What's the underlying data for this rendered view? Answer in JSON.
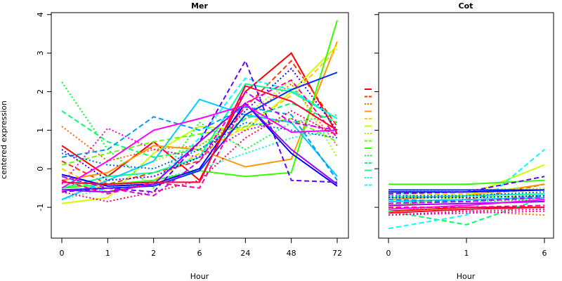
{
  "ylabel": "centered expression",
  "chart_data": [
    {
      "type": "line",
      "title": "Mer",
      "xlabel": "Hour",
      "ylabel": "centered expression",
      "categories": [
        "0",
        "1",
        "2",
        "6",
        "24",
        "48",
        "72"
      ],
      "ylim": [
        -1.8,
        4.05
      ],
      "yticks": [
        -1,
        0,
        1,
        2,
        3,
        4
      ],
      "series": [
        {
          "color": "#ff0000",
          "dash": "solid",
          "values": [
            0.6,
            -0.2,
            0.7,
            -0.3,
            2.0,
            3.0,
            0.9
          ]
        },
        {
          "color": "#ff3300",
          "dash": "dashed",
          "values": [
            0.2,
            -0.4,
            -0.1,
            0.2,
            1.6,
            2.8,
            1.1
          ]
        },
        {
          "color": "#ff6600",
          "dash": "dotted",
          "values": [
            1.1,
            0.2,
            0.5,
            0.6,
            1.3,
            2.2,
            0.6
          ]
        },
        {
          "color": "#ff9900",
          "dash": "solid",
          "values": [
            -0.3,
            -0.1,
            0.6,
            0.5,
            0.05,
            0.25,
            3.3
          ]
        },
        {
          "color": "#ffcc00",
          "dash": "dashed",
          "values": [
            0.0,
            -0.6,
            -0.3,
            0.4,
            1.1,
            1.9,
            3.1
          ]
        },
        {
          "color": "#ccff00",
          "dash": "solid",
          "values": [
            -0.9,
            -0.75,
            0.4,
            1.1,
            1.0,
            2.0,
            3.2
          ]
        },
        {
          "color": "#99ff00",
          "dash": "dotted",
          "values": [
            -0.5,
            -0.3,
            0.2,
            0.6,
            1.4,
            2.3,
            0.3
          ]
        },
        {
          "color": "#66ff00",
          "dash": "dashed",
          "values": [
            0.1,
            0.4,
            0.7,
            0.9,
            1.1,
            1.3,
            0.7
          ]
        },
        {
          "color": "#33ff00",
          "dash": "solid",
          "values": [
            -0.5,
            -0.4,
            -0.3,
            -0.05,
            -0.2,
            -0.1,
            3.85
          ]
        },
        {
          "color": "#00ff33",
          "dash": "dotted",
          "values": [
            2.25,
            0.5,
            -0.5,
            1.2,
            0.5,
            1.2,
            1.4
          ]
        },
        {
          "color": "#00ff66",
          "dash": "dashed",
          "values": [
            1.5,
            0.7,
            0.3,
            0.5,
            1.3,
            1.7,
            1.2
          ]
        },
        {
          "color": "#00ff99",
          "dash": "solid",
          "values": [
            -0.5,
            -0.2,
            -0.1,
            0.3,
            2.2,
            2.0,
            1.3
          ]
        },
        {
          "color": "#00ffcc",
          "dash": "dotted",
          "values": [
            -0.8,
            -0.5,
            -0.3,
            0.0,
            0.4,
            0.8,
            1.0
          ]
        },
        {
          "color": "#00ffff",
          "dash": "dashed",
          "values": [
            -0.2,
            -0.6,
            -0.4,
            0.8,
            2.35,
            2.05,
            1.3
          ]
        },
        {
          "color": "#00ccff",
          "dash": "solid",
          "values": [
            -0.8,
            -0.3,
            0.2,
            1.8,
            1.4,
            1.2,
            -0.2
          ]
        },
        {
          "color": "#0099ff",
          "dash": "dashed",
          "values": [
            0.3,
            0.5,
            1.35,
            1.0,
            1.6,
            1.4,
            -0.3
          ]
        },
        {
          "color": "#0066ff",
          "dash": "dotted",
          "values": [
            0.4,
            0.1,
            0.0,
            0.5,
            1.2,
            1.0,
            0.8
          ]
        },
        {
          "color": "#0033ff",
          "dash": "solid",
          "values": [
            -0.55,
            -0.5,
            -0.45,
            -0.05,
            1.4,
            2.05,
            2.5
          ]
        },
        {
          "color": "#0000ff",
          "dash": "solid",
          "values": [
            -0.15,
            -0.45,
            -0.4,
            0.0,
            1.7,
            0.4,
            -0.45
          ]
        },
        {
          "color": "#3300ff",
          "dash": "dotted",
          "values": [
            0.5,
            -0.3,
            -0.2,
            0.3,
            1.5,
            2.6,
            1.0
          ]
        },
        {
          "color": "#6600ff",
          "dash": "dashed",
          "values": [
            -0.6,
            -0.5,
            -0.6,
            0.7,
            2.8,
            -0.3,
            -0.35
          ]
        },
        {
          "color": "#9900ff",
          "dash": "solid",
          "values": [
            -0.55,
            -0.6,
            -0.4,
            0.7,
            1.7,
            0.5,
            -0.4
          ]
        },
        {
          "color": "#cc00ff",
          "dash": "dashed",
          "values": [
            -0.2,
            -0.5,
            -0.7,
            0.2,
            2.0,
            1.2,
            1.0
          ]
        },
        {
          "color": "#ff00ff",
          "dash": "solid",
          "values": [
            -0.5,
            0.2,
            1.0,
            1.3,
            1.65,
            0.95,
            1.0
          ]
        },
        {
          "color": "#ff00cc",
          "dash": "dotted",
          "values": [
            -0.4,
            1.05,
            0.5,
            0.3,
            1.0,
            1.3,
            0.9
          ]
        },
        {
          "color": "#ff0099",
          "dash": "dashed",
          "values": [
            -0.3,
            -0.65,
            -0.35,
            -0.5,
            1.7,
            2.3,
            0.8
          ]
        },
        {
          "color": "#ff0066",
          "dash": "dotted",
          "values": [
            -0.6,
            -0.85,
            -0.6,
            -0.3,
            0.8,
            1.5,
            0.85
          ]
        },
        {
          "color": "#ff0033",
          "dash": "solid",
          "values": [
            -0.35,
            -0.4,
            -0.35,
            -0.35,
            2.15,
            1.75,
            1.0
          ]
        }
      ]
    },
    {
      "type": "line",
      "title": "Cot",
      "xlabel": "Hour",
      "ylabel": "",
      "categories": [
        "0",
        "1",
        "6"
      ],
      "ylim": [
        -1.8,
        4.05
      ],
      "yticks": [
        -1,
        0,
        1,
        2,
        3,
        4
      ],
      "series": [
        {
          "color": "#ff0000",
          "dash": "solid",
          "values": [
            -1.1,
            -1.0,
            -1.0
          ]
        },
        {
          "color": "#ff3300",
          "dash": "dashed",
          "values": [
            -0.9,
            -0.8,
            -0.4
          ]
        },
        {
          "color": "#ff6600",
          "dash": "dotted",
          "values": [
            -1.0,
            -1.1,
            -1.2
          ]
        },
        {
          "color": "#ff9900",
          "dash": "solid",
          "values": [
            -0.8,
            -0.7,
            -0.4
          ]
        },
        {
          "color": "#ffcc00",
          "dash": "dashed",
          "values": [
            -0.7,
            -0.65,
            -0.55
          ]
        },
        {
          "color": "#ccff00",
          "dash": "solid",
          "values": [
            -1.0,
            -0.7,
            0.1
          ]
        },
        {
          "color": "#99ff00",
          "dash": "dotted",
          "values": [
            -0.6,
            -0.55,
            -0.5
          ]
        },
        {
          "color": "#66ff00",
          "dash": "dashed",
          "values": [
            -0.7,
            -0.75,
            -0.7
          ]
        },
        {
          "color": "#33ff00",
          "dash": "solid",
          "values": [
            -0.4,
            -0.4,
            -0.3
          ]
        },
        {
          "color": "#00ff33",
          "dash": "dotted",
          "values": [
            -0.9,
            -0.85,
            -0.8
          ]
        },
        {
          "color": "#00ff66",
          "dash": "dashed",
          "values": [
            -1.1,
            -1.45,
            -0.75
          ]
        },
        {
          "color": "#00ff99",
          "dash": "solid",
          "values": [
            -0.75,
            -0.7,
            -0.65
          ]
        },
        {
          "color": "#00ffcc",
          "dash": "dotted",
          "values": [
            -0.65,
            -0.6,
            -0.55
          ]
        },
        {
          "color": "#00ffff",
          "dash": "dashed",
          "values": [
            -1.55,
            -1.2,
            0.5
          ]
        },
        {
          "color": "#00ccff",
          "dash": "solid",
          "values": [
            -0.85,
            -0.8,
            -0.75
          ]
        },
        {
          "color": "#0099ff",
          "dash": "dashed",
          "values": [
            -0.8,
            -0.85,
            -0.7
          ]
        },
        {
          "color": "#0066ff",
          "dash": "dotted",
          "values": [
            -0.7,
            -0.7,
            -0.6
          ]
        },
        {
          "color": "#0033ff",
          "dash": "solid",
          "values": [
            -0.55,
            -0.55,
            -0.55
          ]
        },
        {
          "color": "#0000ff",
          "dash": "solid",
          "values": [
            -0.6,
            -0.6,
            -0.55
          ]
        },
        {
          "color": "#3300ff",
          "dash": "dotted",
          "values": [
            -0.75,
            -0.75,
            -0.7
          ]
        },
        {
          "color": "#6600ff",
          "dash": "dashed",
          "values": [
            -0.65,
            -0.6,
            -0.2
          ]
        },
        {
          "color": "#9900ff",
          "dash": "solid",
          "values": [
            -0.95,
            -0.9,
            -0.85
          ]
        },
        {
          "color": "#cc00ff",
          "dash": "dashed",
          "values": [
            -0.9,
            -0.85,
            -0.75
          ]
        },
        {
          "color": "#ff00ff",
          "dash": "solid",
          "values": [
            -1.05,
            -0.95,
            -0.8
          ]
        },
        {
          "color": "#ff00cc",
          "dash": "dotted",
          "values": [
            -1.2,
            -1.15,
            -1.1
          ]
        },
        {
          "color": "#ff0099",
          "dash": "dashed",
          "values": [
            -1.0,
            -1.0,
            -0.95
          ]
        },
        {
          "color": "#ff0066",
          "dash": "dotted",
          "values": [
            -1.2,
            -1.1,
            -1.05
          ]
        },
        {
          "color": "#ff0033",
          "dash": "solid",
          "values": [
            -1.15,
            -1.05,
            -1.0
          ]
        }
      ]
    }
  ],
  "legend_keys": {
    "placement": "between panels (left of Cot panel)",
    "series": [
      {
        "color": "#ff0000",
        "dash": "solid"
      },
      {
        "color": "#ff3300",
        "dash": "dashed"
      },
      {
        "color": "#ff6600",
        "dash": "dotted"
      },
      {
        "color": "#ff9900",
        "dash": "solid"
      },
      {
        "color": "#ffcc00",
        "dash": "dashed"
      },
      {
        "color": "#ccff00",
        "dash": "solid"
      },
      {
        "color": "#99ff00",
        "dash": "dotted"
      },
      {
        "color": "#66ff00",
        "dash": "dashed"
      },
      {
        "color": "#33ff00",
        "dash": "solid"
      },
      {
        "color": "#00ff33",
        "dash": "dotted"
      },
      {
        "color": "#00ff66",
        "dash": "dashed"
      },
      {
        "color": "#00ff99",
        "dash": "solid"
      },
      {
        "color": "#00ffcc",
        "dash": "dotted"
      },
      {
        "color": "#00ffff",
        "dash": "dashed"
      }
    ]
  }
}
